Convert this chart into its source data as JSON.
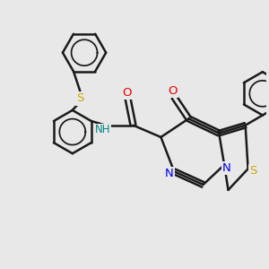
{
  "bg_color": "#e8e8e8",
  "bond_color": "#1a1a1a",
  "bond_width": 1.8,
  "atom_colors": {
    "N": "#0000ee",
    "O": "#ee0000",
    "S": "#ccaa00",
    "NH": "#008888",
    "C": "#1a1a1a"
  },
  "font_size": 8.5,
  "fig_size": [
    3.0,
    3.0
  ],
  "dpi": 100
}
